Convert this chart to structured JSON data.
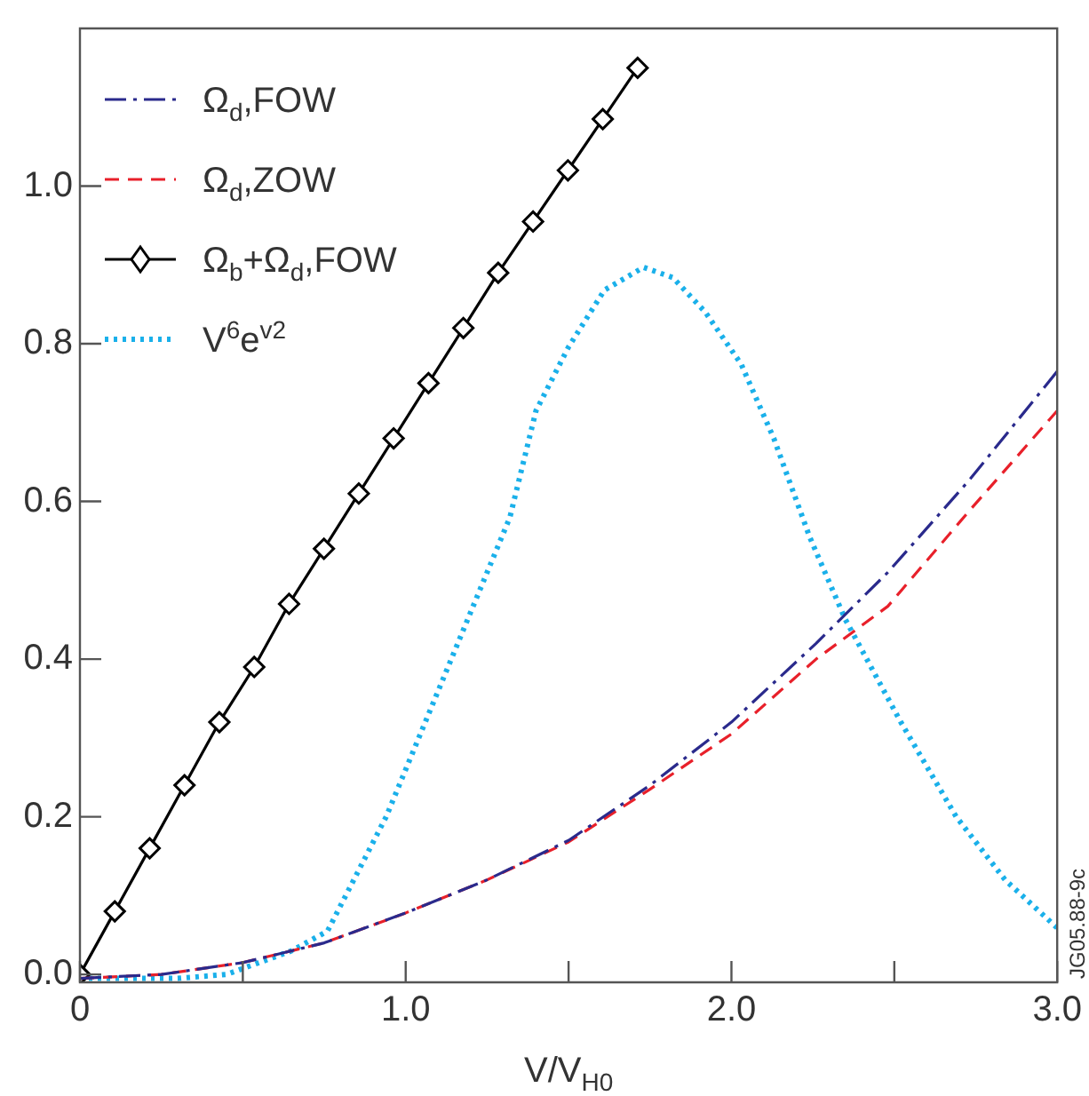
{
  "chart_data": {
    "type": "line",
    "xlabel": "V/V$_{H0}$",
    "annotations": [
      "JG05.88-9c"
    ],
    "xlim": [
      0,
      3.0
    ],
    "ylim": [
      -0.01,
      1.2
    ],
    "xticks": [
      0,
      {
        "value": 0.5,
        "label": null
      },
      {
        "value": 1,
        "label": "1.0"
      },
      {
        "value": 1.5,
        "label": null
      },
      {
        "value": 2,
        "label": "2.0"
      },
      {
        "value": 2.5,
        "label": null
      },
      {
        "value": 3,
        "label": "3.0"
      }
    ],
    "yticks": [
      {
        "value": 0,
        "label": "0.0"
      },
      {
        "value": 0.2,
        "label": "0.2"
      },
      {
        "value": 0.4,
        "label": "0.4"
      },
      {
        "value": 0.6,
        "label": "0.6"
      },
      {
        "value": 0.8,
        "label": "0.8"
      },
      {
        "value": 1,
        "label": "1.0"
      }
    ],
    "grid": false,
    "legend": "top left",
    "series": [
      {
        "name": "Ω$_{d}$,FOW",
        "color": "#2a2a8c",
        "line_style": "dashdot",
        "marker": "none",
        "x": [
          0,
          0.25,
          0.5,
          0.75,
          1.0,
          1.25,
          1.5,
          1.75,
          2.0,
          2.26,
          2.48,
          2.73,
          3.0
        ],
        "values": [
          -0.005,
          0.0,
          0.015,
          0.04,
          0.078,
          0.12,
          0.17,
          0.24,
          0.32,
          0.42,
          0.51,
          0.627,
          0.765
        ]
      },
      {
        "name": "Ω$_{d}$,ZOW",
        "color": "#e8202a",
        "line_style": "dashed",
        "marker": "none",
        "x": [
          0,
          0.25,
          0.5,
          0.75,
          1.0,
          1.25,
          1.5,
          1.75,
          2.0,
          2.26,
          2.48,
          2.73,
          3.0
        ],
        "values": [
          -0.005,
          0.0,
          0.015,
          0.04,
          0.078,
          0.12,
          0.168,
          0.235,
          0.305,
          0.4,
          0.467,
          0.588,
          0.715
        ]
      },
      {
        "name": "Ω$_{b}$+Ω$_{d}$,FOW",
        "color": "#000000",
        "line_style": "solid",
        "marker": "diamond",
        "x": [
          0,
          0.107,
          0.214,
          0.321,
          0.428,
          0.535,
          0.642,
          0.749,
          0.856,
          0.963,
          1.07,
          1.177,
          1.284,
          1.391,
          1.498,
          1.605,
          1.712
        ],
        "values": [
          0,
          0.08,
          0.16,
          0.24,
          0.32,
          0.39,
          0.47,
          0.54,
          0.61,
          0.68,
          0.75,
          0.82,
          0.89,
          0.955,
          1.02,
          1.085,
          1.15
        ]
      },
      {
        "name": "V$^{6}$e$^{v2}$",
        "color": "#1ab0ea",
        "line_style": "dotted",
        "marker": "none",
        "x": [
          0,
          0.3,
          0.45,
          0.65,
          0.76,
          0.94,
          1.12,
          1.17,
          1.32,
          1.4,
          1.5,
          1.61,
          1.73,
          1.82,
          1.92,
          2.03,
          2.13,
          2.24,
          2.35,
          2.52,
          2.69,
          2.84,
          3.0
        ],
        "values": [
          -0.005,
          -0.005,
          0.0,
          0.03,
          0.055,
          0.2,
          0.38,
          0.43,
          0.58,
          0.715,
          0.796,
          0.868,
          0.897,
          0.884,
          0.84,
          0.774,
          0.68,
          0.555,
          0.45,
          0.32,
          0.2,
          0.12,
          0.059
        ]
      }
    ]
  }
}
